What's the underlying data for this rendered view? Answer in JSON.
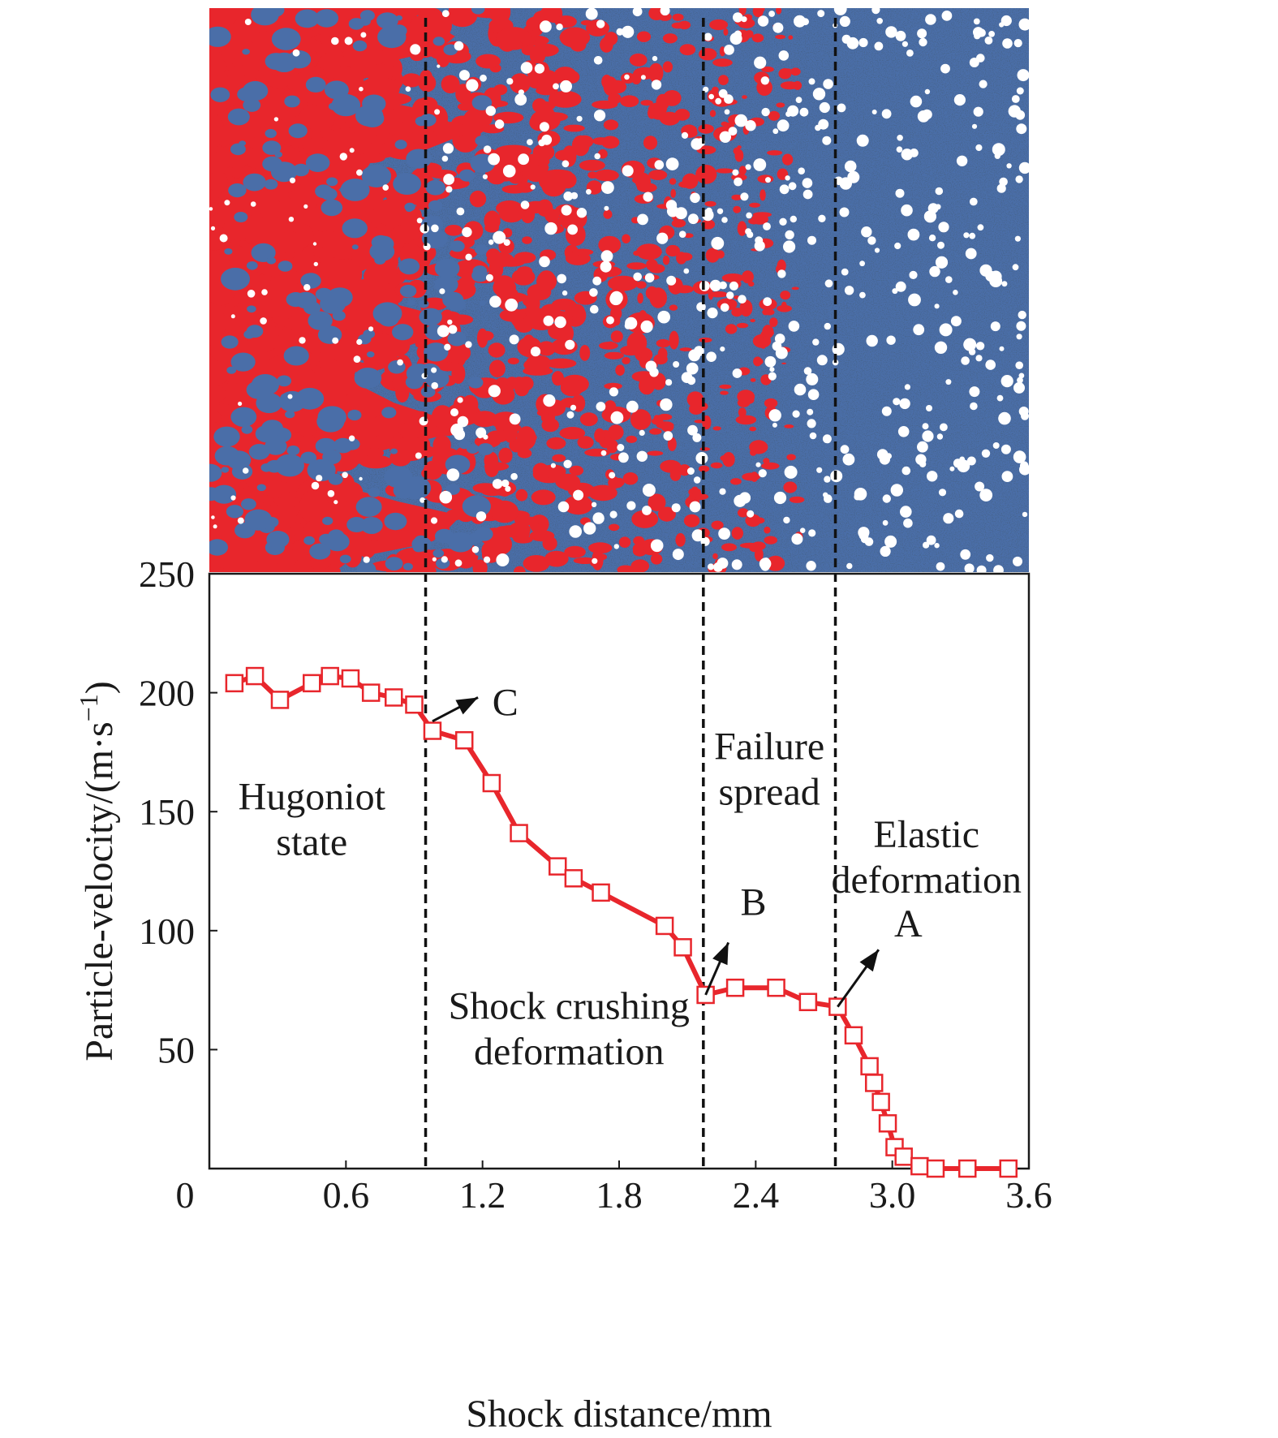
{
  "chart_data": {
    "type": "line",
    "title": "",
    "xlabel": "Shock distance/mm",
    "ylabel": "Particle-velocity/(m·s",
    "ylabel_sup": "−1",
    "ylabel_close": ")",
    "xlim": [
      0,
      3.6
    ],
    "ylim": [
      0,
      250
    ],
    "x_ticks": [
      {
        "value": 0,
        "label": "0"
      },
      {
        "value": 0.6,
        "label": "0.6"
      },
      {
        "value": 1.2,
        "label": "1.2"
      },
      {
        "value": 1.8,
        "label": "1.8"
      },
      {
        "value": 2.4,
        "label": "2.4"
      },
      {
        "value": 3.0,
        "label": "3.0"
      },
      {
        "value": 3.6,
        "label": "3.6"
      }
    ],
    "y_ticks": [
      {
        "value": 50,
        "label": "50"
      },
      {
        "value": 100,
        "label": "100"
      },
      {
        "value": 150,
        "label": "150"
      },
      {
        "value": 200,
        "label": "200"
      },
      {
        "value": 250,
        "label": "250"
      }
    ],
    "series": [
      {
        "color": "#e8262c",
        "marker": "open-square",
        "x": [
          0.11,
          0.2,
          0.31,
          0.45,
          0.53,
          0.62,
          0.71,
          0.81,
          0.9,
          0.98,
          1.12,
          1.24,
          1.36,
          1.53,
          1.6,
          1.72,
          2.0,
          2.08,
          2.18,
          2.31,
          2.49,
          2.63,
          2.76,
          2.83,
          2.9,
          2.92,
          2.95,
          2.98,
          3.01,
          3.05,
          3.12,
          3.19,
          3.33,
          3.51
        ],
        "y": [
          204,
          207,
          197,
          204,
          207,
          206,
          200,
          198,
          195,
          184,
          180,
          162,
          141,
          127,
          122,
          116,
          102,
          93,
          73,
          76,
          76,
          70,
          68,
          56,
          43,
          36,
          28,
          19,
          9,
          5,
          1,
          0,
          0,
          0
        ]
      }
    ],
    "dashed_lines_x": [
      0.95,
      2.17,
      2.75
    ],
    "region_labels": [
      {
        "id": "hugoniot",
        "lines": [
          "Hugoniot",
          "state"
        ],
        "x": 0.45,
        "y": 151
      },
      {
        "id": "crushing",
        "lines": [
          "Shock crushing",
          "deformation"
        ],
        "x": 1.58,
        "y": 63
      },
      {
        "id": "failure",
        "lines": [
          "Failure",
          "spread"
        ],
        "x": 2.46,
        "y": 172
      },
      {
        "id": "elastic",
        "lines": [
          "Elastic",
          "deformation"
        ],
        "x": 3.15,
        "y": 135
      }
    ],
    "annotations": [
      {
        "label": "C",
        "from": [
          0.98,
          188
        ],
        "to": [
          1.18,
          198
        ],
        "text_at": [
          1.3,
          196
        ]
      },
      {
        "label": "B",
        "from": [
          2.18,
          73
        ],
        "to": [
          2.28,
          95
        ],
        "text_at": [
          2.39,
          112
        ]
      },
      {
        "label": "A",
        "from": [
          2.76,
          68
        ],
        "to": [
          2.94,
          92
        ],
        "text_at": [
          3.07,
          103
        ]
      }
    ],
    "grid": false,
    "legend": "none",
    "inset_map": {
      "kind": "simulation-damage-field",
      "colors": {
        "damaged": "#e8262c",
        "intact": "#4a6ea8",
        "dark": "#10203e",
        "void": "#ffffff"
      }
    }
  }
}
